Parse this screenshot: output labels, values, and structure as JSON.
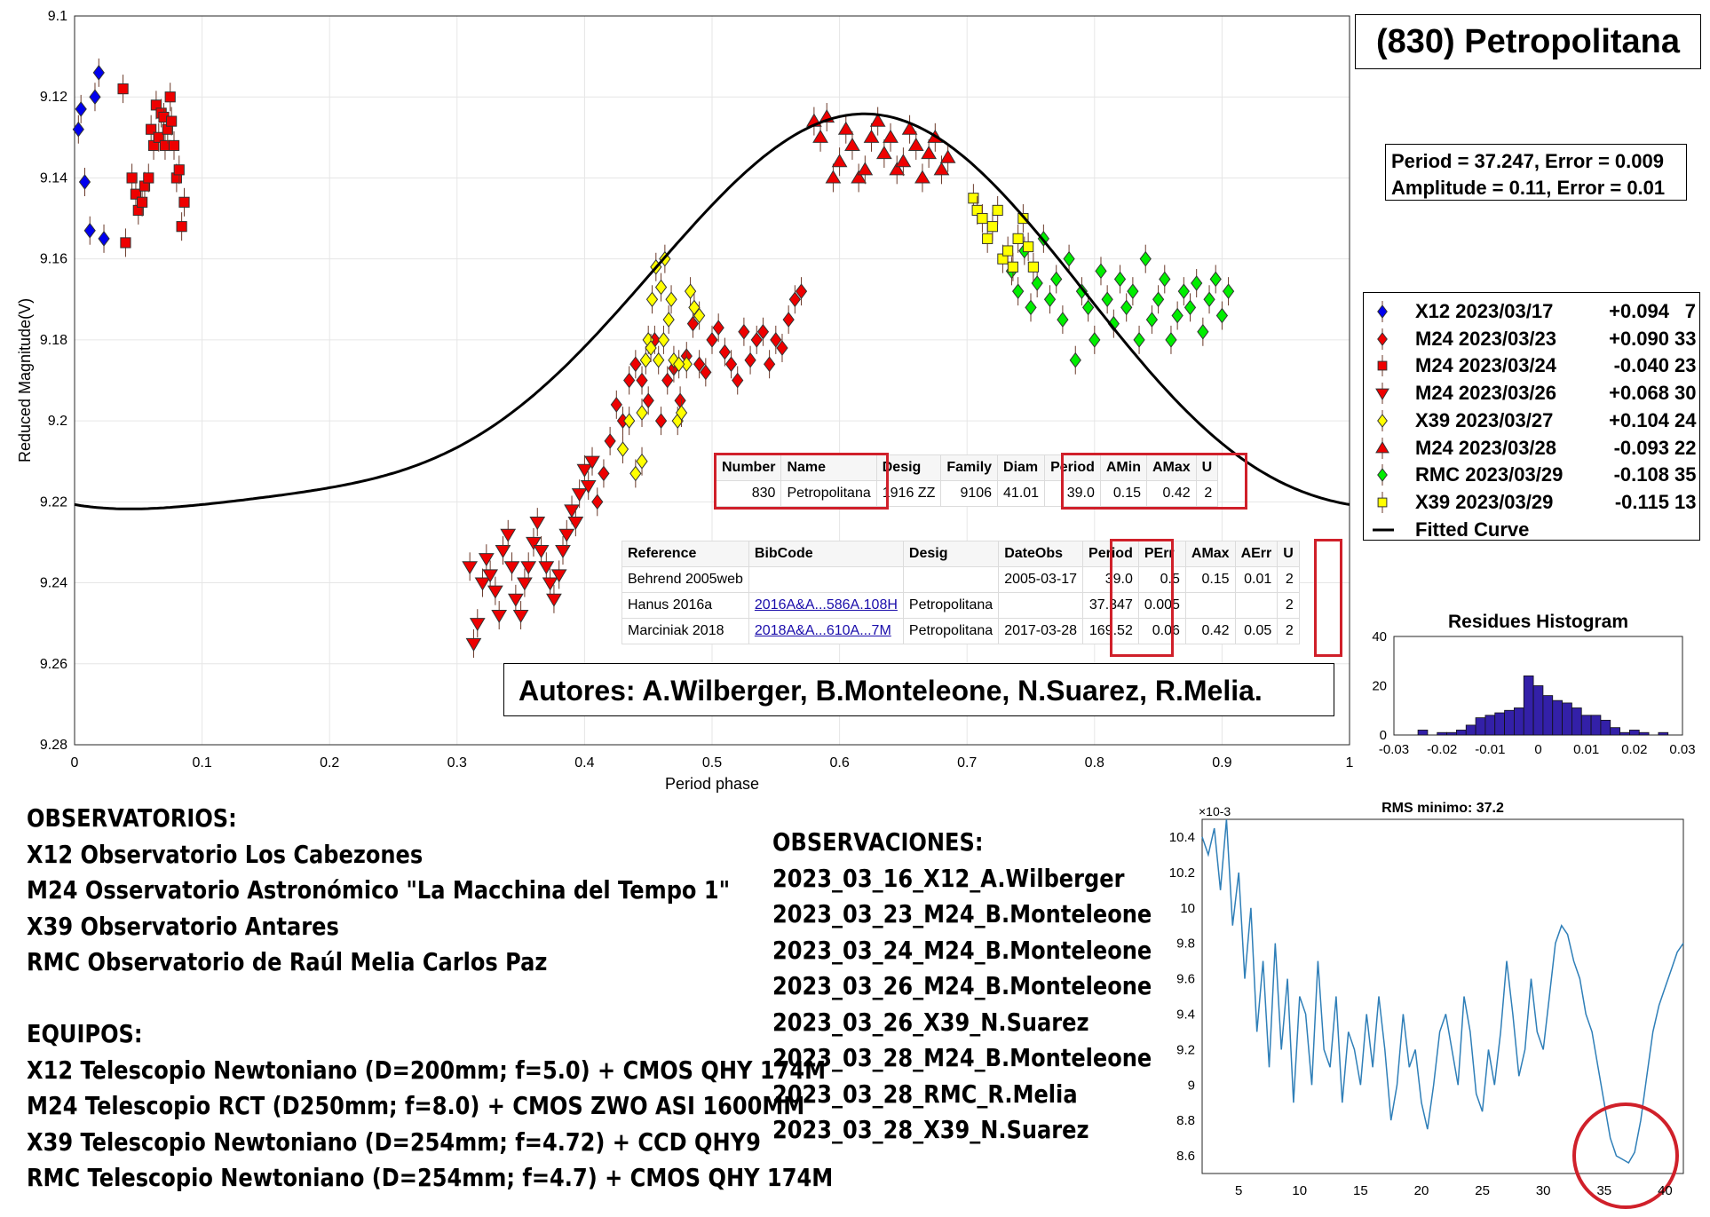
{
  "object_title": "(830) Petropolitana",
  "fit_info": {
    "line1": "Period =  37.247, Error = 0.009",
    "line2": "Amplitude = 0.11, Error = 0.01"
  },
  "authors": "Autores: A.Wilberger, B.Monteleone, N.Suarez, R.Melia.",
  "colors": {
    "X12": "#0000ee",
    "M24": "#ee0000",
    "X39": "#ffff00",
    "RMC": "#00ee00",
    "curve": "#000000",
    "hist": "#3320a8",
    "periodogram": "#2f7fb8",
    "highlight": "#d0202a"
  },
  "legend": [
    {
      "name": "X12 2023/03/17",
      "offset": "+0.094",
      "count": "7",
      "color": "#0000ee",
      "marker": "diamond"
    },
    {
      "name": "M24 2023/03/23",
      "offset": "+0.090",
      "count": "33",
      "color": "#ee0000",
      "marker": "diamond"
    },
    {
      "name": "M24 2023/03/24",
      "offset": "-0.040",
      "count": "23",
      "color": "#ee0000",
      "marker": "square"
    },
    {
      "name": "M24 2023/03/26",
      "offset": "+0.068",
      "count": "30",
      "color": "#ee0000",
      "marker": "triangle-down"
    },
    {
      "name": "X39 2023/03/27",
      "offset": "+0.104",
      "count": "24",
      "color": "#ffff00",
      "marker": "diamond"
    },
    {
      "name": "M24 2023/03/28",
      "offset": "-0.093",
      "count": "22",
      "color": "#ee0000",
      "marker": "triangle-up"
    },
    {
      "name": "RMC 2023/03/29",
      "offset": "-0.108",
      "count": "35",
      "color": "#00ee00",
      "marker": "diamond"
    },
    {
      "name": "X39 2023/03/29",
      "offset": "-0.115",
      "count": "13",
      "color": "#ffff00",
      "marker": "square"
    },
    {
      "name": "Fitted Curve",
      "offset": "",
      "count": "",
      "color": "#000000",
      "marker": "line"
    }
  ],
  "table1": {
    "headers": [
      "Number",
      "Name",
      "Desig",
      "Family",
      "Diam",
      "Period",
      "AMin",
      "AMax",
      "U"
    ],
    "row": [
      "830",
      "Petropolitana",
      "1916 ZZ",
      "9106",
      "41.01",
      "39.0",
      "0.15",
      "0.42",
      "2"
    ]
  },
  "table2": {
    "headers": [
      "Reference",
      "BibCode",
      "Desig",
      "DateObs",
      "Period",
      "PErr",
      "AMax",
      "AErr",
      "U"
    ],
    "rows": [
      [
        "Behrend 2005web",
        "",
        "",
        "2005-03-17",
        "39.0",
        "0.5",
        "0.15",
        "0.01",
        "2"
      ],
      [
        "Hanus 2016a",
        "2016A&A...586A.108H",
        "Petropolitana",
        "",
        "37.347",
        "0.005",
        "",
        "",
        "2"
      ],
      [
        "Marciniak 2018",
        "2018A&A...610A...7M",
        "Petropolitana",
        "2017-03-28",
        "169.52",
        "0.06",
        "0.42",
        "0.05",
        "2"
      ]
    ]
  },
  "observatorios_text": "OBSERVATORIOS:\nX12 Observatorio Los Cabezones\nM24 Osservatorio Astronómico \"La Macchina del Tempo 1\"\nX39 Observatorio Antares\nRMC Observatorio de Raúl Melia Carlos Paz\n\nEQUIPOS:\nX12 Telescopio Newtoniano (D=200mm; f=5.0) + CMOS QHY 174M\nM24 Telescopio RCT (D250mm; f=8.0) + CMOS ZWO ASI 1600MM\nX39 Telescopio Newtoniano (D=254mm; f=4.72) + CCD QHY9\nRMC Telescopio Newtoniano (D=254mm; f=4.7) + CMOS QHY 174M",
  "observaciones_text": "OBSERVACIONES:\n2023_03_16_X12_A.Wilberger\n2023_03_23_M24_B.Monteleone\n2023_03_24_M24_B.Monteleone\n2023_03_26_M24_B.Monteleone\n2023_03_26_X39_N.Suarez\n2023_03_28_M24_B.Monteleone\n2023_03_28_RMC_R.Melia\n2023_03_28_X39_N.Suarez",
  "chart_data": [
    {
      "type": "scatter",
      "xlabel": "Period phase",
      "ylabel": "Reduced Magnitude(V)",
      "xlim": [
        0,
        1
      ],
      "ylim": [
        9.1,
        9.28
      ],
      "y_reversed": true,
      "grid": true,
      "xticks": [
        "0",
        "0.1",
        "0.2",
        "0.3",
        "0.4",
        "0.5",
        "0.6",
        "0.7",
        "0.8",
        "0.9",
        "1"
      ],
      "yticks": [
        "9.1",
        "9.12",
        "9.14",
        "9.16",
        "9.18",
        "9.2",
        "9.22",
        "9.24",
        "9.26",
        "9.28"
      ],
      "fitted_curve": {
        "mean": 9.183,
        "a1": 0.048,
        "p1": 0.61,
        "a2": 0.011,
        "p2": 0.38
      },
      "series": [
        {
          "name": "X12 2023/03/17",
          "marker": "diamond",
          "color": "#0000ee",
          "x": [
            0.003,
            0.005,
            0.008,
            0.012,
            0.016,
            0.019,
            0.023
          ],
          "y": [
            9.128,
            9.123,
            9.141,
            9.153,
            9.12,
            9.114,
            9.155
          ]
        },
        {
          "name": "M24 2023/03/23",
          "marker": "diamond",
          "color": "#ee0000",
          "x": [
            0.41,
            0.415,
            0.42,
            0.425,
            0.43,
            0.435,
            0.44,
            0.445,
            0.45,
            0.455,
            0.46,
            0.465,
            0.47,
            0.475,
            0.48,
            0.485,
            0.49,
            0.495,
            0.5,
            0.505,
            0.51,
            0.515,
            0.52,
            0.525,
            0.53,
            0.535,
            0.54,
            0.545,
            0.55,
            0.555,
            0.56,
            0.565,
            0.57
          ],
          "y": [
            9.22,
            9.213,
            9.205,
            9.196,
            9.2,
            9.19,
            9.186,
            9.19,
            9.195,
            9.18,
            9.2,
            9.19,
            9.187,
            9.195,
            9.184,
            9.176,
            9.186,
            9.188,
            9.18,
            9.177,
            9.183,
            9.186,
            9.19,
            9.178,
            9.185,
            9.18,
            9.178,
            9.186,
            9.18,
            9.182,
            9.175,
            9.17,
            9.168
          ]
        },
        {
          "name": "M24 2023/03/24",
          "marker": "square",
          "color": "#ee0000",
          "x": [
            0.038,
            0.04,
            0.045,
            0.048,
            0.05,
            0.053,
            0.055,
            0.058,
            0.06,
            0.062,
            0.064,
            0.066,
            0.068,
            0.07,
            0.071,
            0.073,
            0.075,
            0.076,
            0.078,
            0.08,
            0.082,
            0.084,
            0.086
          ],
          "y": [
            9.118,
            9.156,
            9.14,
            9.144,
            9.148,
            9.146,
            9.142,
            9.14,
            9.128,
            9.132,
            9.122,
            9.13,
            9.124,
            9.125,
            9.132,
            9.128,
            9.12,
            9.126,
            9.132,
            9.14,
            9.138,
            9.152,
            9.146
          ]
        },
        {
          "name": "M24 2023/03/26",
          "marker": "triangle-down",
          "color": "#ee0000",
          "x": [
            0.31,
            0.313,
            0.316,
            0.32,
            0.323,
            0.326,
            0.33,
            0.333,
            0.336,
            0.34,
            0.343,
            0.346,
            0.35,
            0.353,
            0.356,
            0.36,
            0.363,
            0.366,
            0.37,
            0.373,
            0.376,
            0.38,
            0.383,
            0.386,
            0.39,
            0.393,
            0.396,
            0.4,
            0.403,
            0.406
          ],
          "y": [
            9.236,
            9.255,
            9.25,
            9.24,
            9.234,
            9.238,
            9.242,
            9.248,
            9.232,
            9.228,
            9.236,
            9.244,
            9.248,
            9.24,
            9.236,
            9.23,
            9.225,
            9.232,
            9.236,
            9.24,
            9.244,
            9.238,
            9.232,
            9.228,
            9.222,
            9.225,
            9.218,
            9.212,
            9.216,
            9.21
          ]
        },
        {
          "name": "X39 2023/03/27",
          "marker": "diamond",
          "color": "#ffff00",
          "x": [
            0.43,
            0.435,
            0.44,
            0.445,
            0.45,
            0.453,
            0.456,
            0.46,
            0.463,
            0.466,
            0.47,
            0.473,
            0.476,
            0.48,
            0.483,
            0.486,
            0.49,
            0.445,
            0.448,
            0.452,
            0.458,
            0.462,
            0.468,
            0.474
          ],
          "y": [
            9.207,
            9.2,
            9.213,
            9.21,
            9.18,
            9.17,
            9.162,
            9.167,
            9.16,
            9.175,
            9.185,
            9.2,
            9.198,
            9.186,
            9.168,
            9.172,
            9.174,
            9.198,
            9.185,
            9.182,
            9.185,
            9.18,
            9.17,
            9.186
          ]
        },
        {
          "name": "M24 2023/03/28",
          "marker": "triangle-up",
          "color": "#ee0000",
          "x": [
            0.58,
            0.585,
            0.59,
            0.595,
            0.6,
            0.605,
            0.61,
            0.615,
            0.62,
            0.625,
            0.63,
            0.635,
            0.64,
            0.645,
            0.65,
            0.655,
            0.66,
            0.665,
            0.67,
            0.675,
            0.68,
            0.685
          ],
          "y": [
            9.126,
            9.13,
            9.125,
            9.14,
            9.136,
            9.128,
            9.132,
            9.14,
            9.138,
            9.13,
            9.126,
            9.134,
            9.13,
            9.138,
            9.136,
            9.128,
            9.132,
            9.14,
            9.134,
            9.13,
            9.138,
            9.135
          ]
        },
        {
          "name": "RMC 2023/03/29",
          "marker": "diamond",
          "color": "#00ee00",
          "x": [
            0.735,
            0.74,
            0.745,
            0.75,
            0.755,
            0.76,
            0.765,
            0.77,
            0.775,
            0.78,
            0.785,
            0.79,
            0.795,
            0.8,
            0.805,
            0.81,
            0.815,
            0.82,
            0.825,
            0.83,
            0.835,
            0.84,
            0.845,
            0.85,
            0.855,
            0.86,
            0.865,
            0.87,
            0.875,
            0.88,
            0.885,
            0.89,
            0.895,
            0.9,
            0.905
          ],
          "y": [
            9.163,
            9.168,
            9.158,
            9.172,
            9.166,
            9.155,
            9.17,
            9.165,
            9.175,
            9.16,
            9.185,
            9.168,
            9.172,
            9.18,
            9.163,
            9.17,
            9.176,
            9.165,
            9.172,
            9.168,
            9.18,
            9.16,
            9.175,
            9.17,
            9.165,
            9.18,
            9.174,
            9.168,
            9.172,
            9.166,
            9.178,
            9.17,
            9.165,
            9.174,
            9.168
          ]
        },
        {
          "name": "X39 2023/03/29",
          "marker": "square",
          "color": "#ffff00",
          "x": [
            0.705,
            0.708,
            0.712,
            0.716,
            0.72,
            0.724,
            0.728,
            0.732,
            0.736,
            0.74,
            0.744,
            0.748,
            0.752
          ],
          "y": [
            9.145,
            9.148,
            9.15,
            9.155,
            9.152,
            9.148,
            9.16,
            9.158,
            9.162,
            9.155,
            9.15,
            9.157,
            9.162
          ]
        }
      ]
    },
    {
      "type": "bar",
      "title": "Residues Histogram",
      "xlim": [
        -0.03,
        0.03
      ],
      "ylim": [
        0,
        40
      ],
      "xticks": [
        "-0.03",
        "-0.02",
        "-0.01",
        "0",
        "0.01",
        "0.02",
        "0.03"
      ],
      "yticks": [
        "0",
        "20",
        "40"
      ],
      "bin_width": 0.002,
      "bin_start": -0.025,
      "values": [
        2,
        0,
        1,
        1,
        2,
        4,
        7,
        8,
        9,
        10,
        11,
        24,
        20,
        16,
        14,
        13,
        11,
        8,
        8,
        6,
        3,
        1,
        2,
        1,
        0,
        1
      ]
    },
    {
      "type": "line",
      "title": "RMS minimo: 37.2",
      "xlim": [
        2,
        41.5
      ],
      "ylim": [
        8.5,
        10.5
      ],
      "y_multiplier": "×10-3",
      "xticks": [
        "5",
        "10",
        "15",
        "20",
        "25",
        "30",
        "35",
        "40"
      ],
      "yticks": [
        "8.6",
        "8.8",
        "9",
        "9.2",
        "9.4",
        "9.6",
        "9.8",
        "10",
        "10.2",
        "10.4"
      ],
      "x": [
        2,
        2.5,
        3,
        3.5,
        4,
        4.5,
        5,
        5.5,
        6,
        6.5,
        7,
        7.5,
        8,
        8.5,
        9,
        9.5,
        10,
        10.5,
        11,
        11.5,
        12,
        12.5,
        13,
        13.5,
        14,
        14.5,
        15,
        15.5,
        16,
        16.5,
        17,
        17.5,
        18,
        18.5,
        19,
        19.5,
        20,
        20.5,
        21,
        21.5,
        22,
        22.5,
        23,
        23.5,
        24,
        24.5,
        25,
        25.5,
        26,
        26.5,
        27,
        27.5,
        28,
        28.5,
        29,
        29.5,
        30,
        30.5,
        31,
        31.5,
        32,
        32.5,
        33,
        33.5,
        34,
        34.5,
        35,
        35.5,
        36,
        36.5,
        37,
        37.5,
        38,
        38.5,
        39,
        39.5,
        40,
        40.5,
        41,
        41.5
      ],
      "y": [
        10.4,
        10.3,
        10.45,
        10.1,
        10.5,
        9.9,
        10.2,
        9.6,
        10.0,
        9.3,
        9.7,
        9.1,
        9.8,
        9.2,
        9.6,
        8.9,
        9.5,
        9.4,
        9.0,
        9.7,
        9.2,
        9.1,
        9.5,
        8.9,
        9.3,
        9.2,
        9.0,
        9.4,
        9.1,
        9.5,
        9.2,
        8.8,
        9.0,
        9.4,
        9.1,
        9.2,
        8.9,
        8.75,
        9.0,
        9.3,
        9.4,
        9.2,
        9.0,
        9.5,
        9.3,
        8.95,
        8.85,
        9.2,
        9.0,
        9.3,
        9.7,
        9.4,
        9.05,
        9.2,
        9.6,
        9.3,
        9.2,
        9.5,
        9.8,
        9.9,
        9.85,
        9.7,
        9.6,
        9.4,
        9.3,
        9.1,
        8.9,
        8.7,
        8.6,
        8.58,
        8.56,
        8.62,
        8.8,
        9.05,
        9.3,
        9.45,
        9.55,
        9.65,
        9.75,
        9.8
      ],
      "highlight_minimum_x": 37.2
    }
  ]
}
